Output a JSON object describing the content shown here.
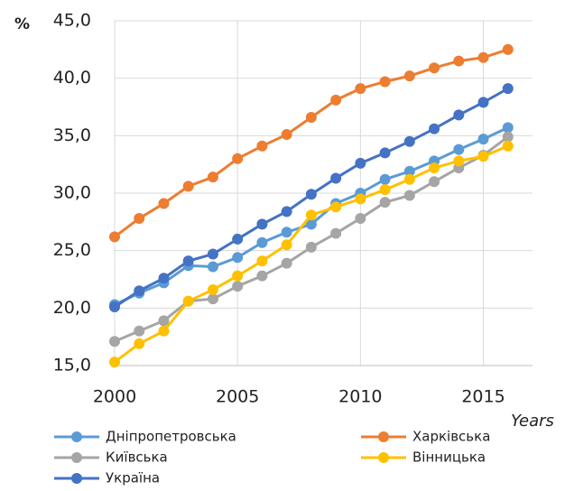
{
  "chart_data": {
    "type": "line",
    "y_label": "%",
    "x_label": "Years",
    "x": [
      2000,
      2001,
      2002,
      2003,
      2004,
      2005,
      2006,
      2007,
      2008,
      2009,
      2010,
      2011,
      2012,
      2013,
      2014,
      2015,
      2016
    ],
    "xlim": [
      2000,
      2017
    ],
    "xticks": [
      2000,
      2005,
      2010,
      2015
    ],
    "ylim": [
      15,
      45
    ],
    "yticks": [
      {
        "value": 15,
        "label": "15,0"
      },
      {
        "value": 20,
        "label": "20,0"
      },
      {
        "value": 25,
        "label": "25,0"
      },
      {
        "value": 30,
        "label": "30,0"
      },
      {
        "value": 35,
        "label": "35,0"
      },
      {
        "value": 40,
        "label": "40,0"
      },
      {
        "value": 45,
        "label": "45,0"
      }
    ],
    "grid": true,
    "legend": "bottom",
    "series": [
      {
        "name": "Дніпропетровська",
        "color": "#5b9bd5",
        "values": [
          20.3,
          21.3,
          22.2,
          23.7,
          23.6,
          24.4,
          25.7,
          26.6,
          27.3,
          29.1,
          30.0,
          31.2,
          31.9,
          32.8,
          33.8,
          34.7,
          35.7
        ]
      },
      {
        "name": "Харківська",
        "color": "#ed7d31",
        "values": [
          26.2,
          27.8,
          29.1,
          30.6,
          31.4,
          33.0,
          34.1,
          35.1,
          36.6,
          38.1,
          39.1,
          39.7,
          40.2,
          40.9,
          41.5,
          41.8,
          42.5
        ]
      },
      {
        "name": "Київська",
        "color": "#a5a5a5",
        "values": [
          17.1,
          18.0,
          18.9,
          20.6,
          20.8,
          21.9,
          22.8,
          23.9,
          25.3,
          26.5,
          27.8,
          29.2,
          29.8,
          31.0,
          32.2,
          33.3,
          34.9
        ]
      },
      {
        "name": "Вінницька",
        "color": "#ffc000",
        "values": [
          15.3,
          16.9,
          18.0,
          20.6,
          21.6,
          22.8,
          24.1,
          25.5,
          28.1,
          28.8,
          29.5,
          30.3,
          31.2,
          32.2,
          32.8,
          33.2,
          34.1
        ]
      },
      {
        "name": "Україна",
        "color": "#4472c4",
        "values": [
          20.1,
          21.5,
          22.6,
          24.1,
          24.7,
          26.0,
          27.3,
          28.4,
          29.9,
          31.3,
          32.6,
          33.5,
          34.5,
          35.6,
          36.8,
          37.9,
          39.1
        ]
      }
    ]
  }
}
